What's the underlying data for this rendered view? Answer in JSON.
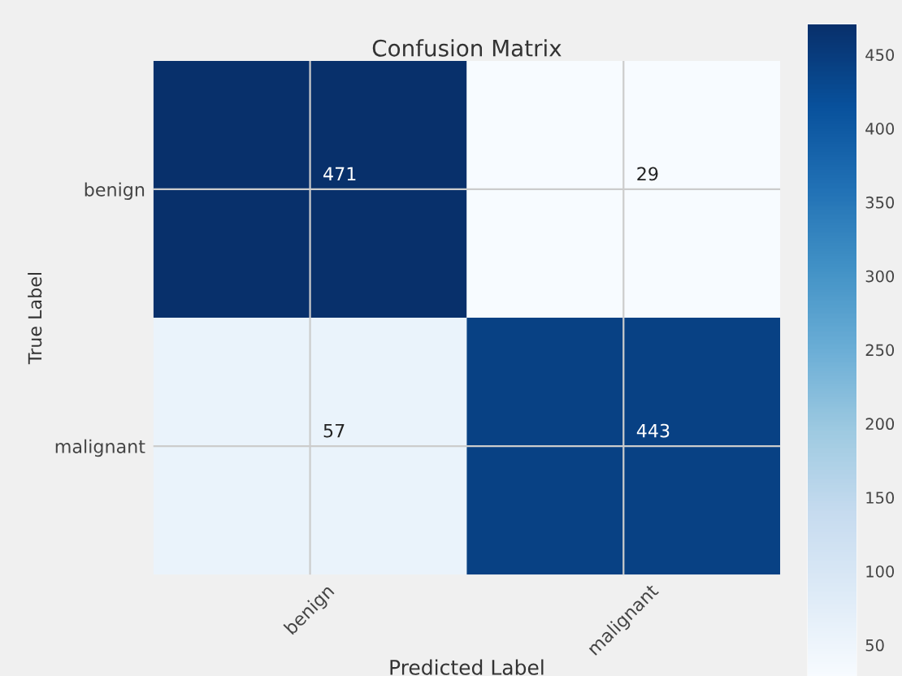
{
  "chart_data": {
    "type": "heatmap",
    "title": "Confusion Matrix",
    "xlabel": "Predicted Label",
    "ylabel": "True Label",
    "categories": [
      "benign",
      "malignant"
    ],
    "y_categories": [
      "benign",
      "malignant"
    ],
    "cells": [
      [
        471,
        29
      ],
      [
        57,
        443
      ]
    ],
    "data_labels": true,
    "clim": [
      29,
      471
    ],
    "cticks": [
      50,
      100,
      150,
      200,
      250,
      300,
      350,
      400,
      450
    ],
    "grid": true
  }
}
